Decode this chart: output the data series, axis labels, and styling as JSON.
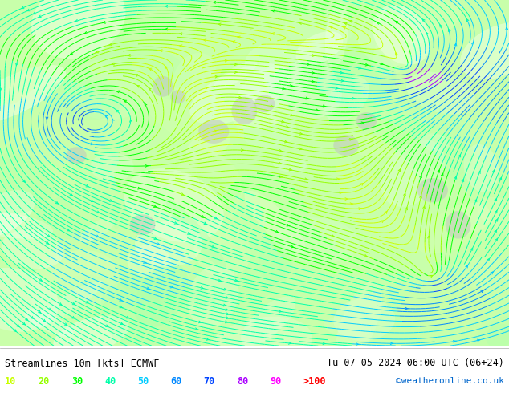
{
  "title_left": "Streamlines 10m [kts] ECMWF",
  "title_right": "Tu 07-05-2024 06:00 UTC (06+24)",
  "credit": "©weatheronline.co.uk",
  "legend_values": [
    "10",
    "20",
    "30",
    "40",
    "50",
    "60",
    "70",
    "80",
    "90",
    ">100"
  ],
  "legend_colors": [
    "#c8ff00",
    "#96ff00",
    "#00ff00",
    "#00ffaa",
    "#00ccff",
    "#0088ff",
    "#0044ff",
    "#aa00ff",
    "#ff00ff",
    "#ff0000"
  ],
  "bg_color": "#ffffff",
  "fig_width": 6.34,
  "fig_height": 4.9,
  "dpi": 100,
  "map_bg_light_green": "#c8ffaa",
  "map_bg_white": "#ffffff",
  "bottom_bar_color": "#ffffff",
  "text_color": "#000000",
  "credit_color": "#0066cc"
}
